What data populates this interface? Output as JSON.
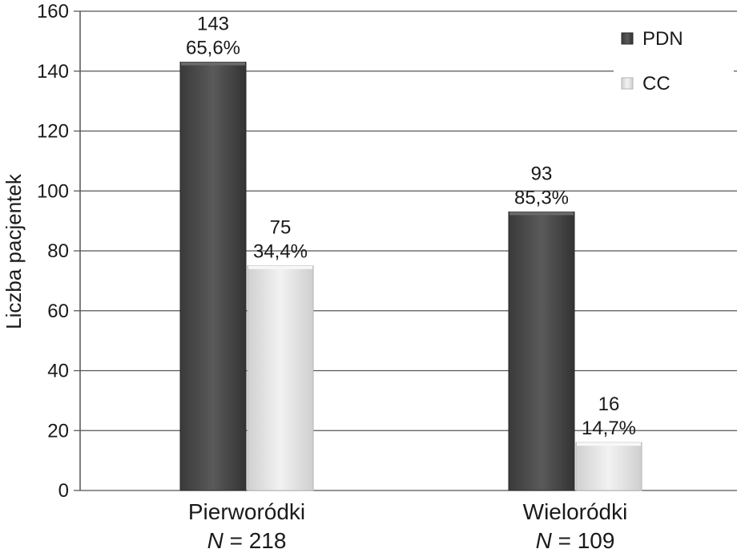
{
  "chart_data": {
    "type": "bar",
    "ylabel": "Liczba pacjentek",
    "xlabel": "",
    "ylim": [
      0,
      160
    ],
    "yticks": [
      0,
      20,
      40,
      60,
      80,
      100,
      120,
      140,
      160
    ],
    "grid": true,
    "legend_position": "top-right",
    "categories": [
      {
        "name": "Pierworódki",
        "n_label": "N",
        "n_value": "= 218"
      },
      {
        "name": "Wieloródki",
        "n_label": "N",
        "n_value": "= 109"
      }
    ],
    "series": [
      {
        "name": "PDN",
        "color": "#4a4a4a",
        "values": [
          143,
          93
        ],
        "percent_labels": [
          "65,6%",
          "85,3%"
        ]
      },
      {
        "name": "CC",
        "color": "#e6e6e6",
        "values": [
          75,
          16
        ],
        "percent_labels": [
          "34,4%",
          "14,7%"
        ]
      }
    ]
  }
}
